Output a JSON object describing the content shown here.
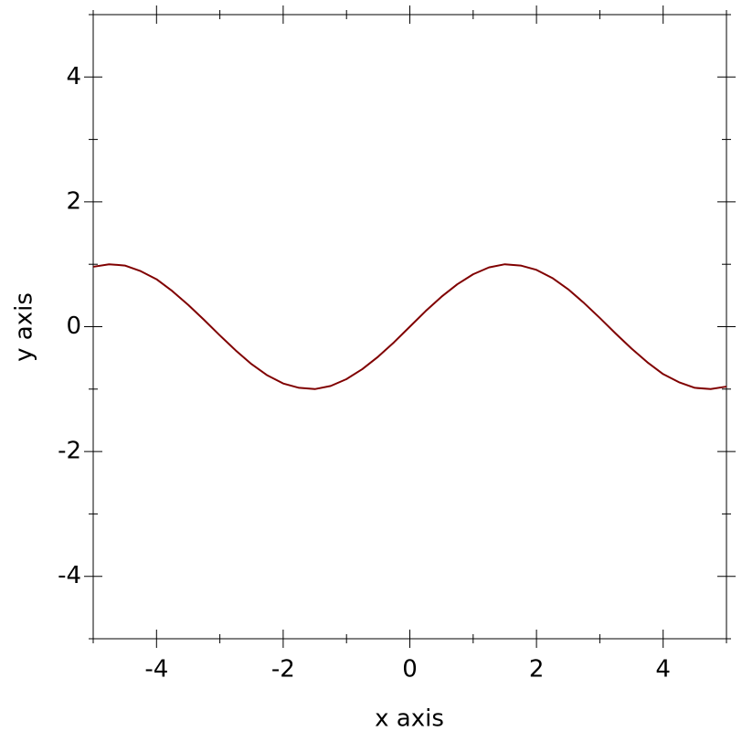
{
  "chart_data": {
    "type": "line",
    "x_label": "x axis",
    "y_label": "y axis",
    "x": [
      -5,
      -4.75,
      -4.5,
      -4.25,
      -4,
      -3.75,
      -3.5,
      -3.25,
      -3,
      -2.75,
      -2.5,
      -2.25,
      -2,
      -1.75,
      -1.5,
      -1.25,
      -1,
      -0.75,
      -0.5,
      -0.25,
      0,
      0.25,
      0.5,
      0.75,
      1,
      1.25,
      1.5,
      1.75,
      2,
      2.25,
      2.5,
      2.75,
      3,
      3.25,
      3.5,
      3.75,
      4,
      4.25,
      4.5,
      4.75,
      5
    ],
    "series": [
      {
        "color": "#800000",
        "values": [
          0.96,
          1.0,
          0.98,
          0.89,
          0.76,
          0.57,
          0.35,
          0.11,
          -0.14,
          -0.38,
          -0.6,
          -0.78,
          -0.91,
          -0.98,
          -1.0,
          -0.95,
          -0.84,
          -0.68,
          -0.48,
          -0.25,
          0,
          0.25,
          0.48,
          0.68,
          0.84,
          0.95,
          1.0,
          0.98,
          0.91,
          0.78,
          0.6,
          0.38,
          0.14,
          -0.11,
          -0.35,
          -0.57,
          -0.76,
          -0.89,
          -0.98,
          -1.0,
          -0.96
        ]
      }
    ],
    "xlim": [
      -5,
      5
    ],
    "ylim": [
      -5,
      5
    ],
    "xticks": [
      -4,
      -2,
      0,
      2,
      4
    ],
    "yticks": [
      -4,
      -2,
      0,
      2,
      4
    ],
    "xminorticks": [
      -5,
      -3,
      -1,
      1,
      3,
      5
    ],
    "yminorticks": [
      -5,
      -3,
      -1,
      1,
      3,
      5
    ],
    "grid": false
  }
}
